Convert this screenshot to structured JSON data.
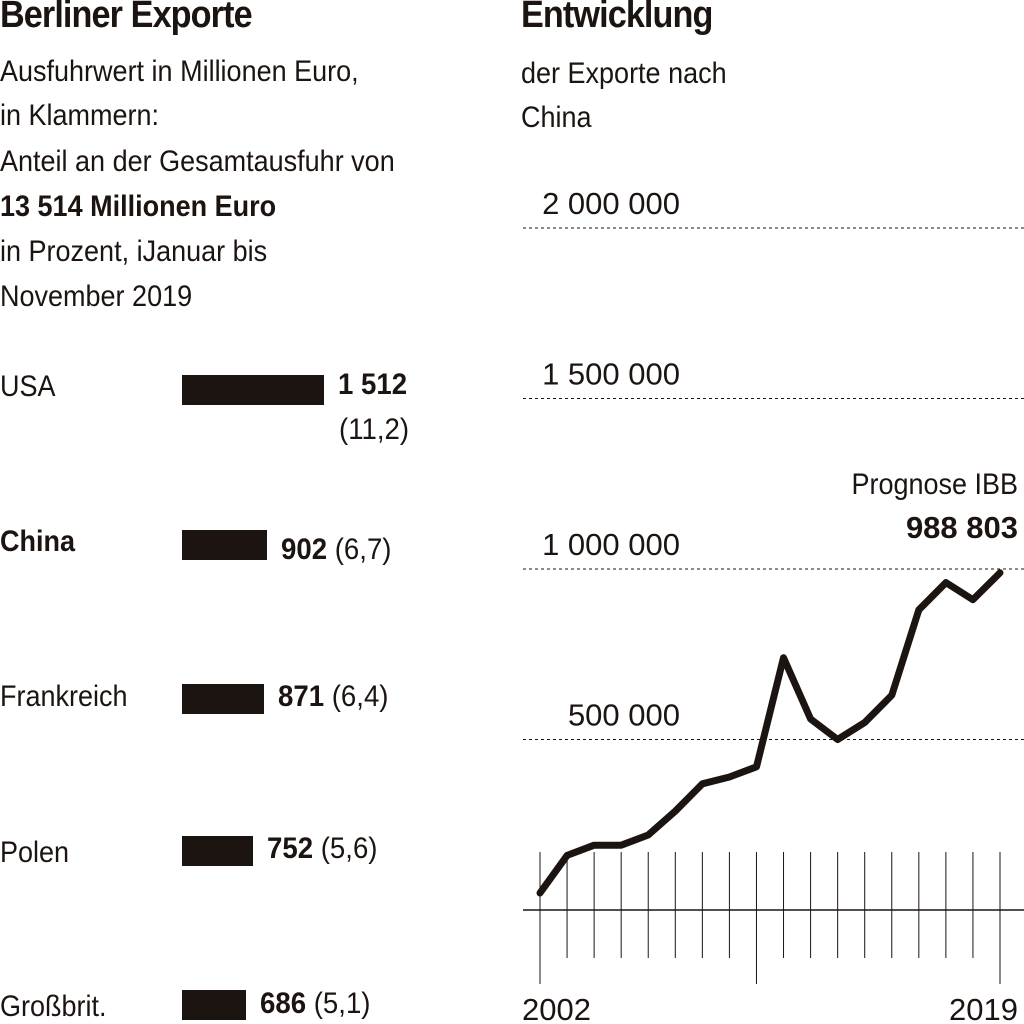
{
  "left": {
    "title": "Berliner Exporte",
    "subtitle_lines": [
      "Ausfuhrwert in Millionen Euro,",
      "in Klammern:",
      "Anteil an der Gesamtausfuhr von",
      "13 514 Millionen Euro",
      "in Prozent, iJanuar bis",
      "November 2019"
    ]
  },
  "right": {
    "title": "Entwicklung",
    "subtitle_lines": [
      "der Exporte nach",
      "China"
    ],
    "annotation_label": "Prognose IBB",
    "annotation_value": "988 803"
  },
  "chart_data": [
    {
      "type": "bar",
      "orientation": "horizontal",
      "title": "Berliner Exporte",
      "categories": [
        "USA",
        "China",
        "Frankreich",
        "Polen",
        "Großbrit."
      ],
      "values": [
        1512,
        902,
        871,
        752,
        686
      ],
      "value_labels": [
        "1 512",
        "902",
        "871",
        "752",
        "686"
      ],
      "shares": [
        "(11,2)",
        "(6,7)",
        "(6,4)",
        "(5,6)",
        "(5,1)"
      ],
      "highlighted_category": "China",
      "bar_color": "#1c1410"
    },
    {
      "type": "line",
      "title": "Entwicklung",
      "x": [
        2002,
        2003,
        2004,
        2005,
        2006,
        2007,
        2008,
        2009,
        2010,
        2011,
        2012,
        2013,
        2014,
        2015,
        2016,
        2017,
        2018,
        2019
      ],
      "values": [
        50000,
        160000,
        190000,
        190000,
        220000,
        290000,
        370000,
        390000,
        420000,
        740000,
        560000,
        500000,
        550000,
        630000,
        880000,
        960000,
        910000,
        988803
      ],
      "y_ticks": [
        500000,
        1000000,
        1500000,
        2000000
      ],
      "y_tick_labels": [
        "500 000",
        "1 000 000",
        "1 500 000",
        "2 000 000"
      ],
      "x_tick_labels": [
        "2002",
        "2019"
      ],
      "ylim": [
        0,
        2000000
      ],
      "grid": true,
      "line_color": "#1c1410"
    }
  ]
}
